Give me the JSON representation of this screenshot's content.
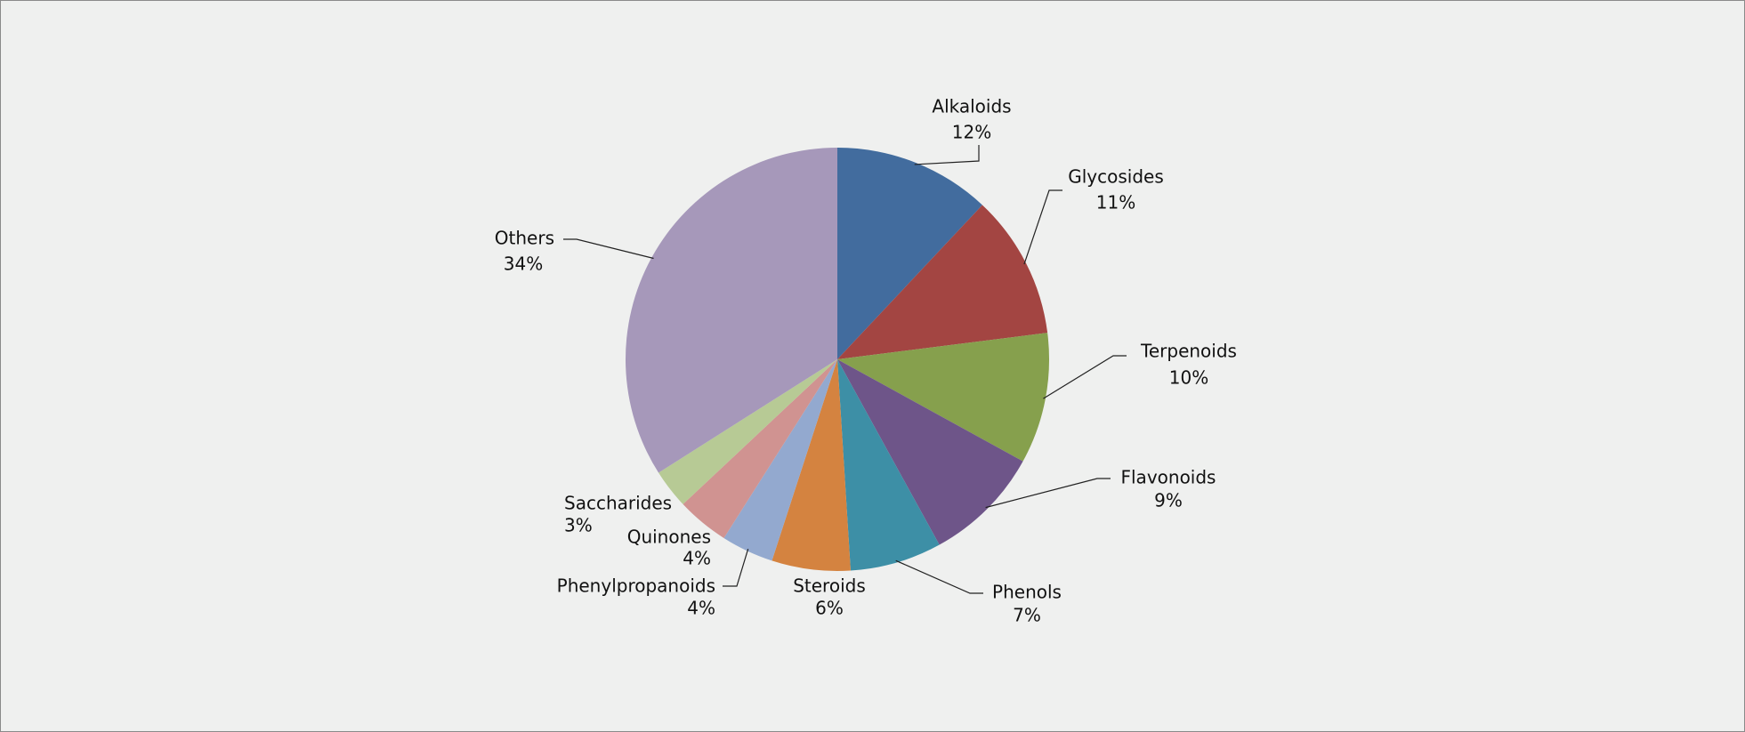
{
  "chart_data": {
    "type": "pie",
    "categories": [
      "Alkaloids",
      "Glycosides",
      "Terpenoids",
      "Flavonoids",
      "Phenols",
      "Steroids",
      "Phenylpropanoids",
      "Quinones",
      "Saccharides",
      "Others"
    ],
    "values": [
      12,
      11,
      10,
      9,
      7,
      6,
      4,
      4,
      3,
      34
    ],
    "value_labels": [
      "12%",
      "11%",
      "10%",
      "9%",
      "7%",
      "6%",
      "4%",
      "4%",
      "3%",
      "34%"
    ],
    "colors": [
      "#426c9e",
      "#a34542",
      "#86a04d",
      "#6e5589",
      "#3d8fa6",
      "#d48340",
      "#93a9cf",
      "#d09391",
      "#b7ca95",
      "#a698ba"
    ]
  }
}
